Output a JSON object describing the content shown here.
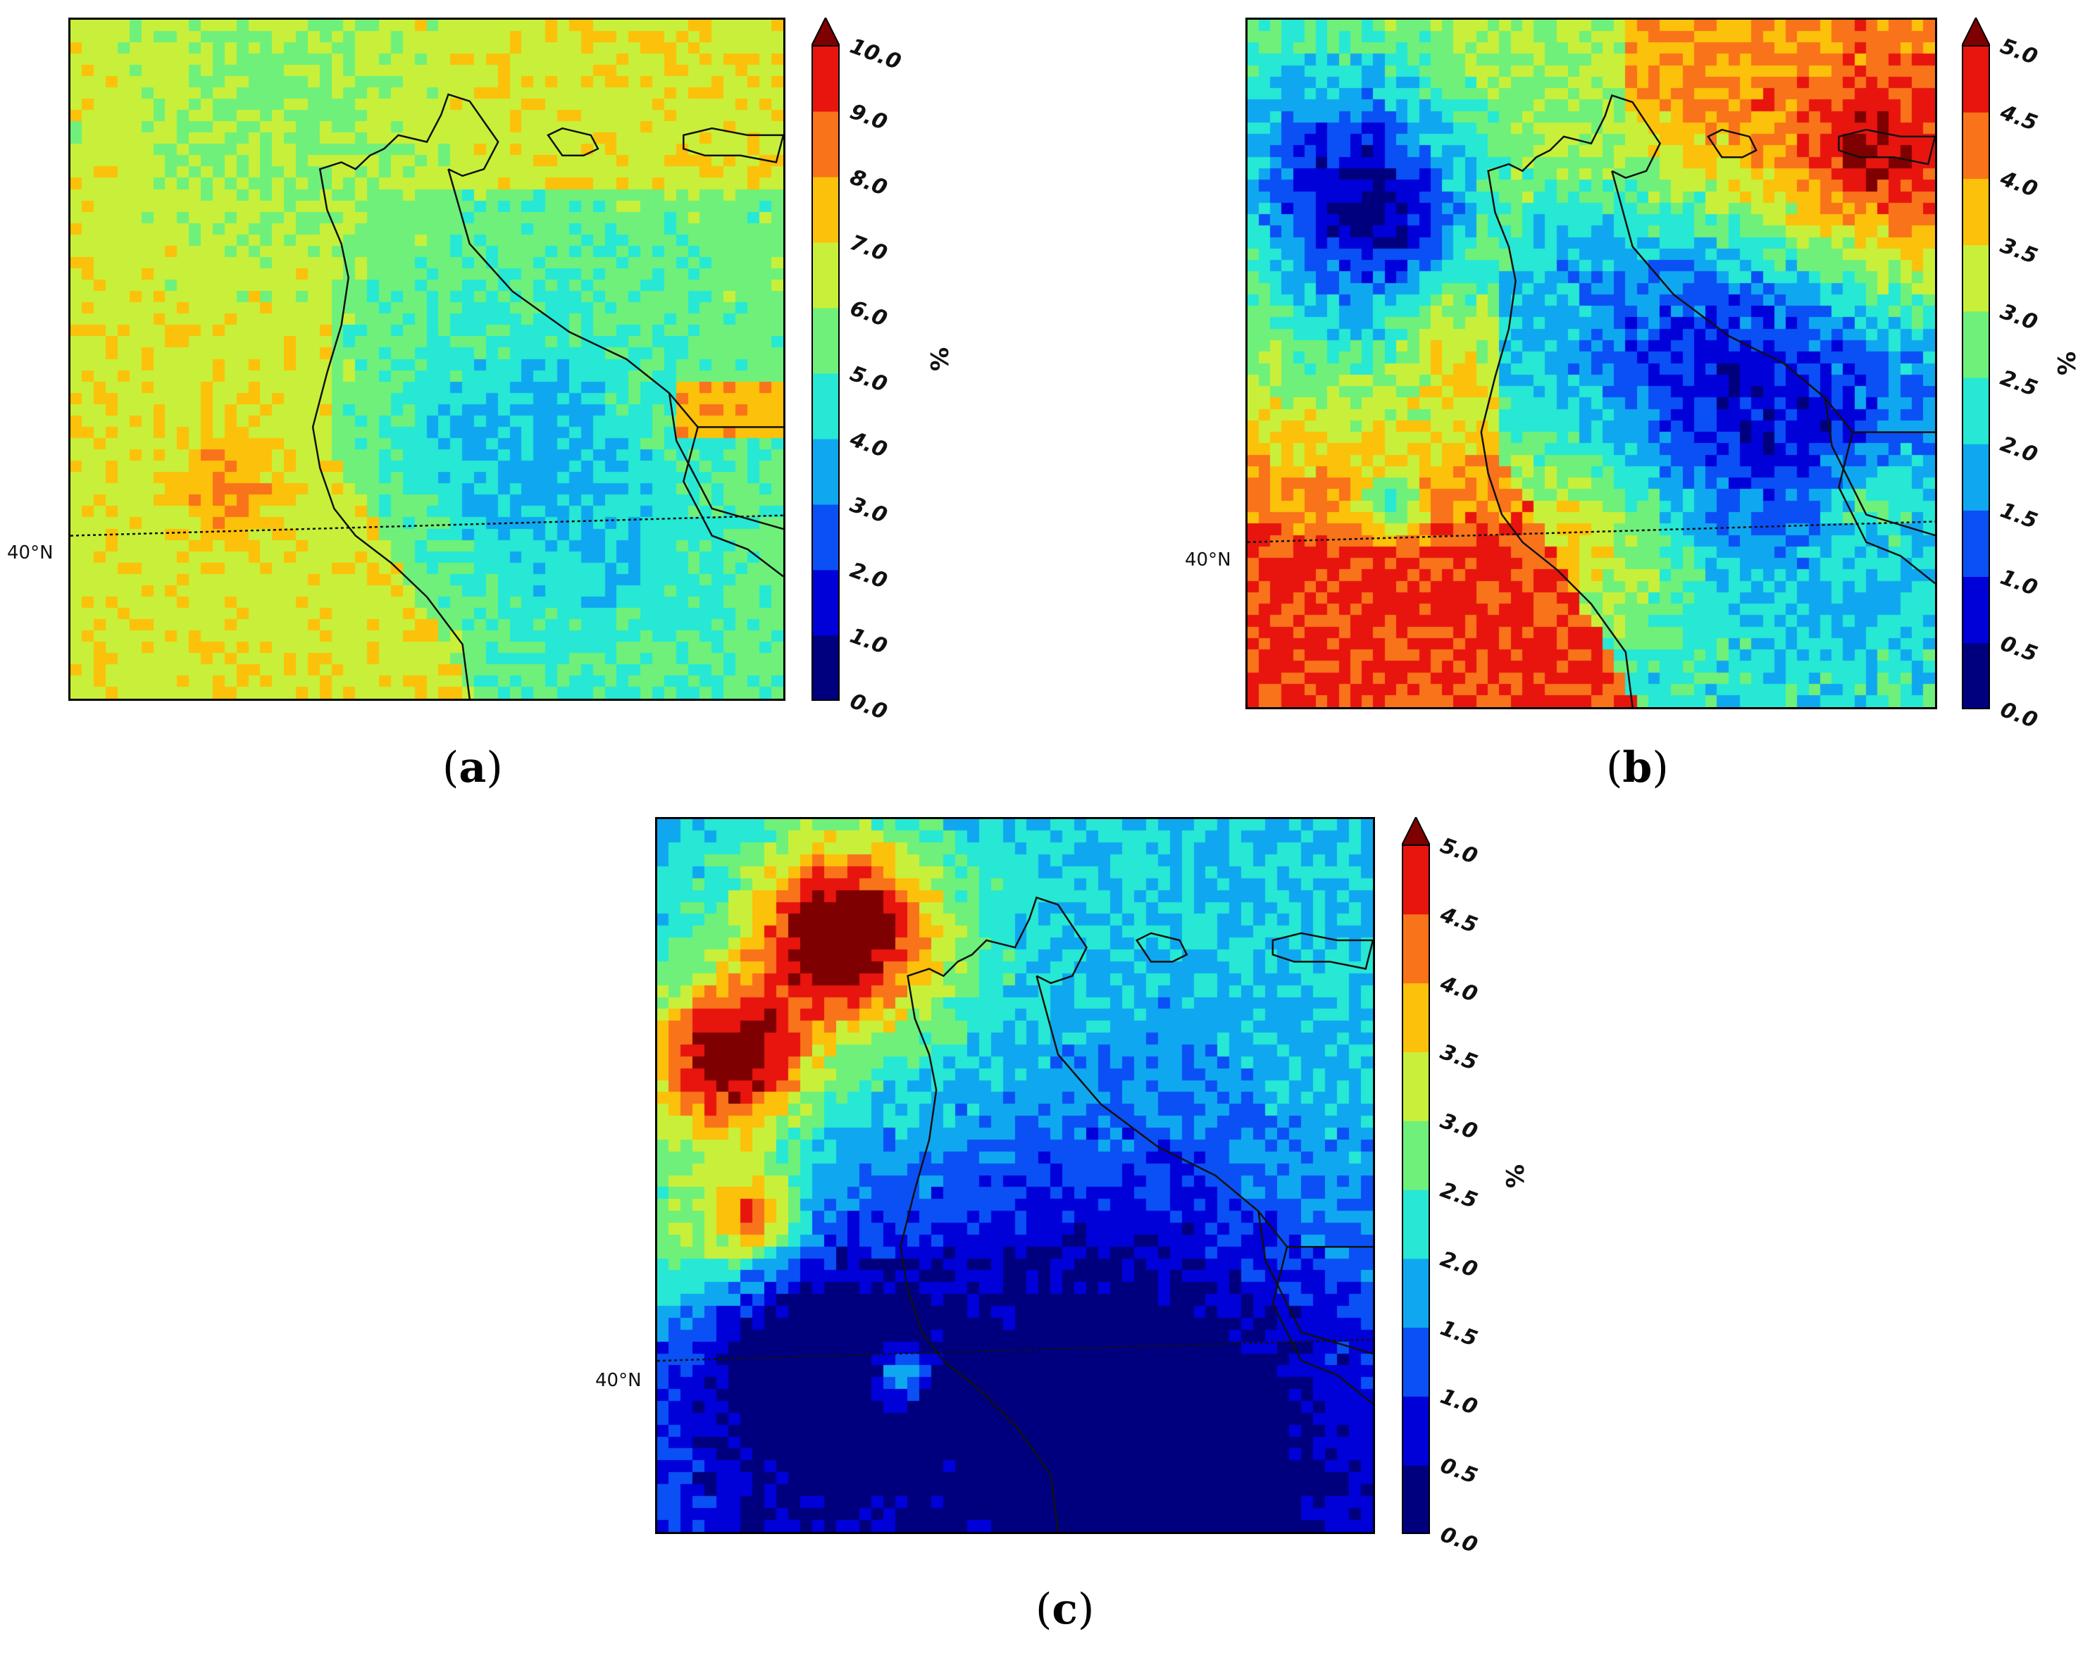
{
  "panels": [
    {
      "id": "a",
      "label_open": "(",
      "label_letter": "a",
      "label_close": ")",
      "lat_label": "40°N",
      "unit": "%",
      "cbar_ticks": [
        "0.0",
        "1.0",
        "2.0",
        "3.0",
        "4.0",
        "5.0",
        "6.0",
        "7.0",
        "8.0",
        "9.0",
        "10.0"
      ],
      "cbar_max": 10.0,
      "field_type": "a"
    },
    {
      "id": "b",
      "label_open": "(",
      "label_letter": "b",
      "label_close": ")",
      "lat_label": "40°N",
      "unit": "%",
      "cbar_ticks": [
        "0.0",
        "0.5",
        "1.0",
        "1.5",
        "2.0",
        "2.5",
        "3.0",
        "3.5",
        "4.0",
        "4.5",
        "5.0"
      ],
      "cbar_max": 5.0,
      "field_type": "b"
    },
    {
      "id": "c",
      "label_open": "(",
      "label_letter": "c",
      "label_close": ")",
      "lat_label": "40°N",
      "unit": "%",
      "cbar_ticks": [
        "0.0",
        "0.5",
        "1.0",
        "1.5",
        "2.0",
        "2.5",
        "3.0",
        "3.5",
        "4.0",
        "4.5",
        "5.0"
      ],
      "cbar_max": 5.0,
      "field_type": "c"
    }
  ],
  "colormap": [
    "#00007f",
    "#0000d9",
    "#0a50f5",
    "#0fa8f0",
    "#26e8d4",
    "#6ff07a",
    "#c8f03a",
    "#fcc10a",
    "#f9731a",
    "#e8140e"
  ],
  "extend_color": "#7f0000"
}
